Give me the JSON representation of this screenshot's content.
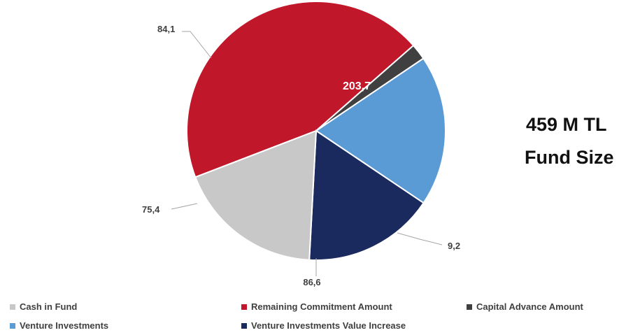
{
  "chart_data": {
    "type": "pie",
    "title": "",
    "unit": "M TL",
    "slices": [
      {
        "label": "Remaining Commitment Amount",
        "value": 203.7,
        "display": "203,7",
        "color": "#C0182A"
      },
      {
        "label": "Capital Advance Amount",
        "value": 9.2,
        "display": "9,2",
        "color": "#404040"
      },
      {
        "label": "Venture Investments",
        "value": 86.6,
        "display": "86,6",
        "color": "#5B9BD5"
      },
      {
        "label": "Venture Investments Value Increase",
        "value": 75.4,
        "display": "75,4",
        "color": "#1B2A5E"
      },
      {
        "label": "Cash in Fund",
        "value": 84.1,
        "display": "84,1",
        "color": "#C8C8C8"
      }
    ],
    "legend": [
      {
        "label": "Cash in Fund",
        "color": "#C8C8C8"
      },
      {
        "label": "Remaining Commitment Amount",
        "color": "#C0182A"
      },
      {
        "label": "Capital Advance Amount",
        "color": "#404040"
      },
      {
        "label": "Venture Investments",
        "color": "#5B9BD5"
      },
      {
        "label": "Venture Investments Value Increase",
        "color": "#1B2A5E"
      }
    ],
    "legend_position": "bottom"
  },
  "fund_size": {
    "value": "459 M TL",
    "label": "Fund Size"
  }
}
